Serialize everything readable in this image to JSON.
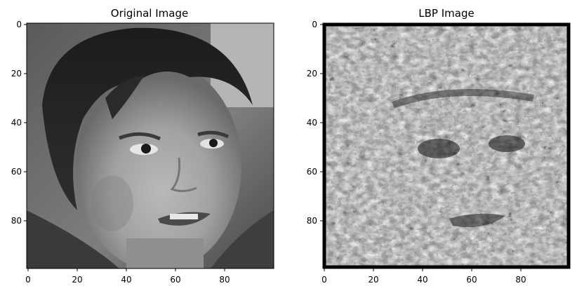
{
  "figure": {
    "panels": [
      {
        "title": "Original Image",
        "image_description": "Grayscale photo of a young child's face with dark hair, slightly open mouth",
        "x_ticks": [
          "0",
          "20",
          "40",
          "60",
          "80"
        ],
        "y_ticks": [
          "0",
          "20",
          "40",
          "60",
          "80"
        ],
        "image_size": [
          100,
          100
        ],
        "colormap": "gray"
      },
      {
        "title": "LBP Image",
        "image_description": "Local Binary Pattern texture map of the same face, high-contrast black/white/grey speckled pattern",
        "x_ticks": [
          "0",
          "20",
          "40",
          "60",
          "80"
        ],
        "y_ticks": [
          "0",
          "20",
          "40",
          "60",
          "80"
        ],
        "image_size": [
          100,
          100
        ],
        "colormap": "gray"
      }
    ]
  }
}
